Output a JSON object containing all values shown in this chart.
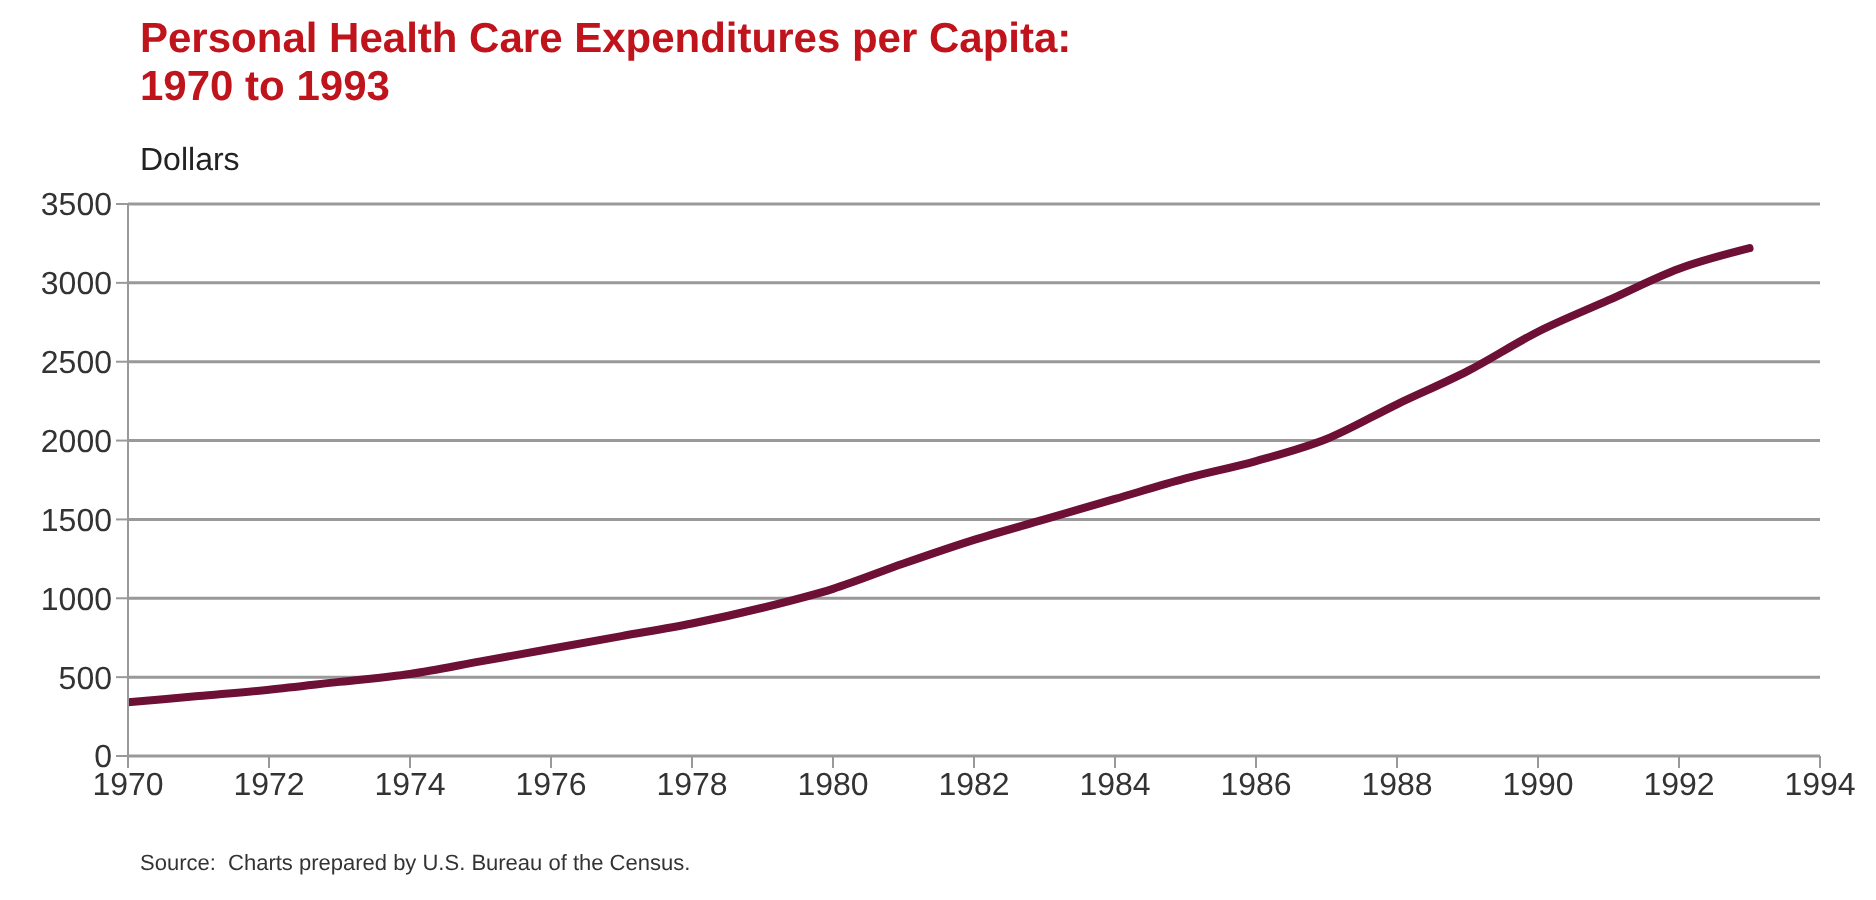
{
  "chart_data": {
    "type": "line",
    "title": "Personal Health Care Expenditures per Capita:\n1970 to 1993",
    "ylabel": "Dollars",
    "x": [
      1970,
      1971,
      1972,
      1973,
      1974,
      1975,
      1976,
      1977,
      1978,
      1979,
      1980,
      1981,
      1982,
      1983,
      1984,
      1985,
      1986,
      1987,
      1988,
      1989,
      1990,
      1991,
      1992,
      1993
    ],
    "series": [
      {
        "color": "#6e0f35",
        "values": [
          340,
          380,
          420,
          470,
          520,
          600,
          680,
          760,
          840,
          940,
          1060,
          1220,
          1370,
          1500,
          1630,
          1760,
          1870,
          2010,
          2230,
          2440,
          2690,
          2890,
          3090,
          3220
        ]
      }
    ],
    "xlim": [
      1970,
      1994
    ],
    "xticks": [
      1970,
      1972,
      1974,
      1976,
      1978,
      1980,
      1982,
      1984,
      1986,
      1988,
      1990,
      1992,
      1994
    ],
    "ylim": [
      0,
      3500
    ],
    "yticks": [
      0,
      500,
      1000,
      1500,
      2000,
      2500,
      3000,
      3500
    ],
    "grid": "y",
    "marker": "none",
    "line_style": "solid",
    "annotations": [
      "Source:  Charts prepared by U.S. Bureau of the Census."
    ]
  }
}
